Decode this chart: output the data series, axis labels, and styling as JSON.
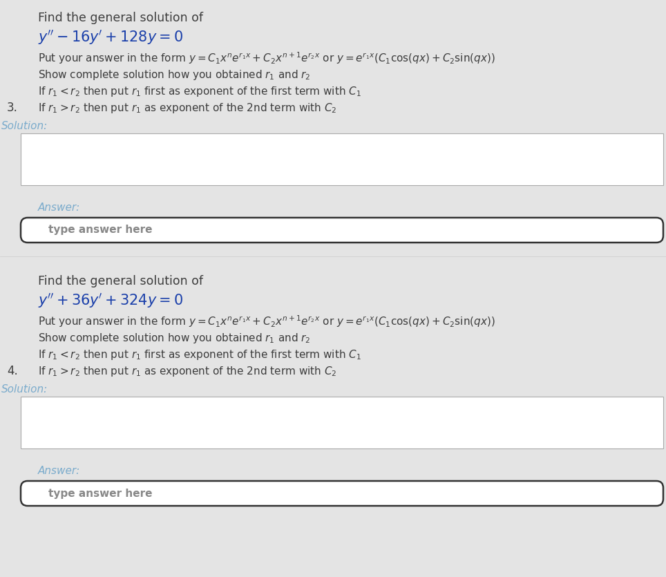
{
  "bg_color": "#e4e4e4",
  "white_color": "#ffffff",
  "text_dark": "#3d3d3d",
  "text_blue": "#1a3faa",
  "text_solution": "#7aabcc",
  "text_answer": "#7aabcc",
  "text_gray": "#888888",
  "text_placeholder": "#888888",
  "box_border": "#aaaaaa",
  "answer_border": "#333333",
  "problem1": {
    "number": "3.",
    "find_text": "Find the general solution of",
    "equation": "$y'' - 16y' + 128y = 0$",
    "form_text": "Put your answer in the form $y = C_1 x^{n} e^{r_1 x} + C_2 x^{n+1} e^{r_2 x}$ or $y = e^{r_1 x}(C_1 \\cos(qx) + C_2 \\sin(qx))$",
    "show_text": "Show complete solution how you obtained $r_1$ and $r_2$",
    "cond1": "If $r_1 < r_2$ then put $r_1$ first as exponent of the first term with $C_1$",
    "cond2": "If $r_1 > r_2$ then put $r_1$ as exponent of the 2nd term with $C_2$",
    "solution_label": "Solution:",
    "answer_label": "Answer:",
    "placeholder": "type answer here"
  },
  "problem2": {
    "number": "4.",
    "find_text": "Find the general solution of",
    "equation": "$y'' + 36y' + 324y = 0$",
    "form_text": "Put your answer in the form $y = C_1 x^{n} e^{r_1 x} + C_2 x^{n+1} e^{r_2 x}$ or $y = e^{r_1 x}(C_1 \\cos(qx) + C_2 \\sin(qx))$",
    "show_text": "Show complete solution how you obtained $r_1$ and $r_2$",
    "cond1": "If $r_1 < r_2$ then put $r_1$ first as exponent of the first term with $C_1$",
    "cond2": "If $r_1 > r_2$ then put $r_1$ as exponent of the 2nd term with $C_2$",
    "solution_label": "Solution:",
    "answer_label": "Answer:",
    "placeholder": "type answer here"
  }
}
